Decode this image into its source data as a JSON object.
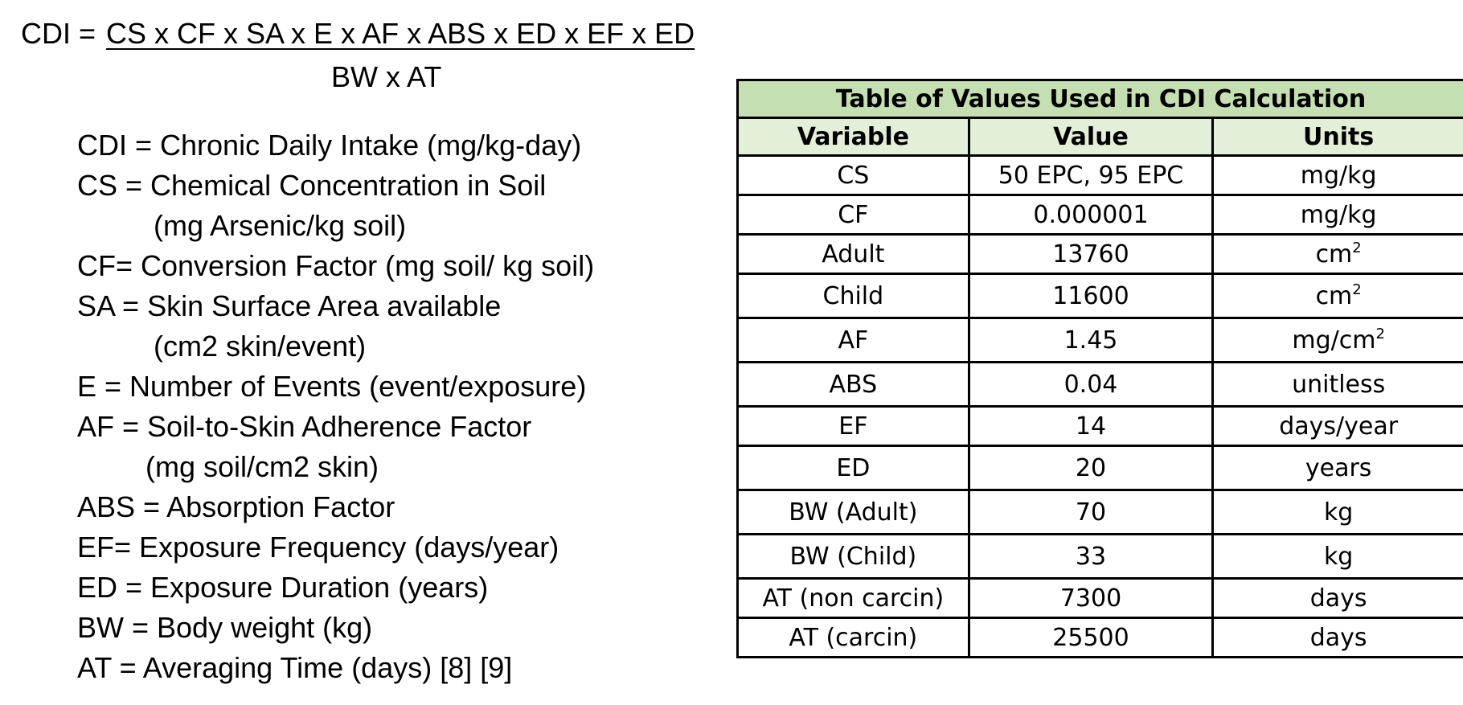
{
  "formula": {
    "lhs": "CDI =",
    "numerator": "CS x CF x SA x E x AF x ABS x ED x EF x ED",
    "denominator": "BW x AT"
  },
  "definitions": [
    "CDI = Chronic Daily Intake (mg/kg-day)",
    "CS = Chemical Concentration in Soil",
    "(mg Arsenic/kg soil)",
    "CF= Conversion Factor (mg soil/ kg soil)",
    "SA = Skin Surface Area available",
    "(cm2 skin/event)",
    "E = Number of Events (event/exposure)",
    "AF = Soil-to-Skin Adherence Factor",
    "(mg soil/cm2 skin)",
    "ABS =  Absorption Factor",
    "EF= Exposure Frequency (days/year)",
    "ED = Exposure Duration (years)",
    "BW = Body weight (kg)",
    "AT = Averaging Time (days) [8] [9]"
  ],
  "table": {
    "title": "Table of Values Used in CDI Calculation",
    "headers": {
      "variable": "Variable",
      "value": "Value",
      "units": "Units"
    },
    "rows": [
      {
        "variable": "CS",
        "value": "50 EPC, 95 EPC",
        "unit": "mg/kg",
        "sup": ""
      },
      {
        "variable": "CF",
        "value": "0.000001",
        "unit": "mg/kg",
        "sup": ""
      },
      {
        "variable": "Adult",
        "value": "13760",
        "unit": "cm",
        "sup": "2"
      },
      {
        "variable": "Child",
        "value": "11600",
        "unit": "cm",
        "sup": "2"
      },
      {
        "variable": "AF",
        "value": "1.45",
        "unit": "mg/cm",
        "sup": "2"
      },
      {
        "variable": "ABS",
        "value": "0.04",
        "unit": "unitless",
        "sup": ""
      },
      {
        "variable": "EF",
        "value": "14",
        "unit": "days/year",
        "sup": ""
      },
      {
        "variable": "ED",
        "value": "20",
        "unit": "years",
        "sup": ""
      },
      {
        "variable": "BW (Adult)",
        "value": "70",
        "unit": "kg",
        "sup": ""
      },
      {
        "variable": "BW (Child)",
        "value": "33",
        "unit": "kg",
        "sup": ""
      },
      {
        "variable": "AT (non carcin)",
        "value": "7300",
        "unit": "days",
        "sup": ""
      },
      {
        "variable": "AT (carcin)",
        "value": "25500",
        "unit": "days",
        "sup": ""
      }
    ]
  }
}
